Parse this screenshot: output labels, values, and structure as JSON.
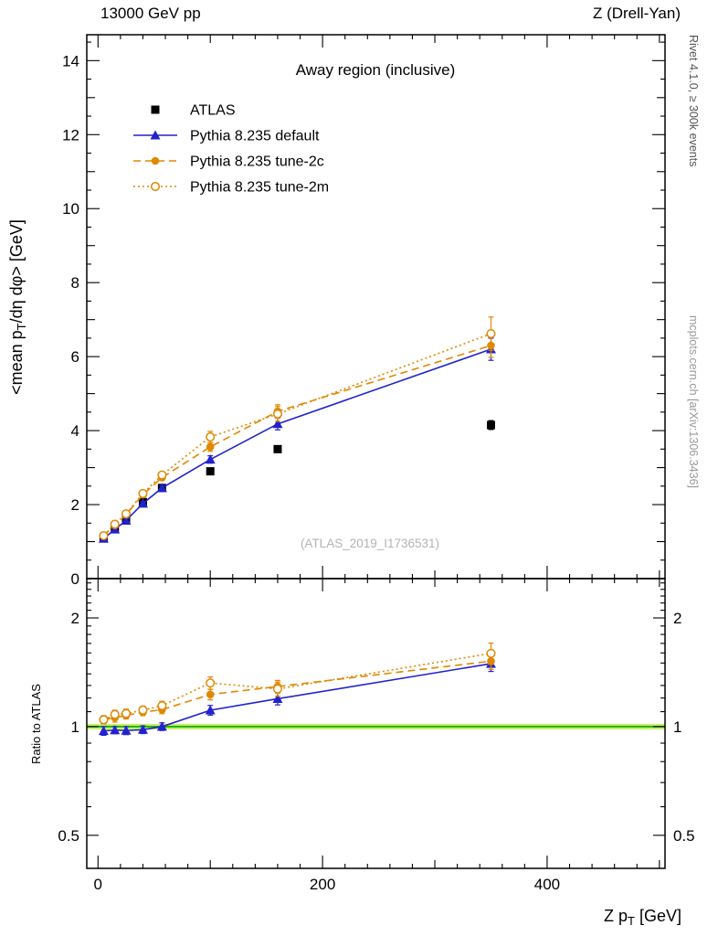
{
  "header": {
    "left_label": "13000 GeV pp",
    "right_label": "Z (Drell-Yan)"
  },
  "side_labels": {
    "top_right": "Rivet 4.1.0, ≥ 300k events",
    "bottom_right": "mcplots.cern.ch [arXiv:1306.3436]"
  },
  "chart_data": {
    "type": "line",
    "title": "Away region (inclusive)",
    "watermark": "(ATLAS_2019_I1736531)",
    "xlabel": "Z p_{T} [GeV]",
    "ylabel": "<mean p_{T}/dη dφ> [GeV]",
    "ratio_ylabel": "Ratio to ATLAS",
    "x": [
      5,
      15,
      25,
      40,
      57,
      100,
      160,
      350
    ],
    "xlim": [
      -10,
      505
    ],
    "ylim": [
      0,
      14.7
    ],
    "ratio_ylim": [
      0.405,
      2.57
    ],
    "ratio_scale": "log",
    "x_ticks_major": [
      0,
      200,
      400
    ],
    "y_ticks_major": [
      0,
      2,
      4,
      6,
      8,
      10,
      12,
      14
    ],
    "ratio_ticks_major": [
      0.5,
      1,
      2
    ],
    "legend_position": "top-left",
    "grid": false,
    "ref_band": {
      "center": 1.0,
      "half_width": 0.018,
      "band_color": "#c9ef6b",
      "line_color": "#00aa00"
    },
    "series": [
      {
        "name": "ATLAS",
        "color": "#000000",
        "marker": "square-filled",
        "line": "none",
        "is_reference": true,
        "values": [
          1.11,
          1.36,
          1.61,
          2.07,
          2.45,
          2.9,
          3.5,
          4.15
        ],
        "errors": [
          0.03,
          0.03,
          0.04,
          0.04,
          0.05,
          0.07,
          0.09,
          0.12
        ]
      },
      {
        "name": "Pythia 8.235 default",
        "color": "#2222cc",
        "marker": "triangle-filled",
        "line": "solid",
        "is_reference": false,
        "values": [
          1.08,
          1.33,
          1.57,
          2.03,
          2.45,
          3.22,
          4.18,
          6.2
        ],
        "errors": [
          0.03,
          0.03,
          0.04,
          0.05,
          0.06,
          0.1,
          0.16,
          0.3
        ]
      },
      {
        "name": "Pythia 8.235 tune-2c",
        "color": "#e08800",
        "marker": "circle-filled",
        "line": "dashed",
        "is_reference": false,
        "values": [
          1.16,
          1.44,
          1.73,
          2.27,
          2.73,
          3.56,
          4.52,
          6.3
        ],
        "errors": [
          0.03,
          0.04,
          0.04,
          0.05,
          0.07,
          0.12,
          0.18,
          0.32
        ]
      },
      {
        "name": "Pythia 8.235 tune-2m",
        "color": "#e08800",
        "marker": "circle-open",
        "line": "dotted",
        "is_reference": false,
        "values": [
          1.16,
          1.47,
          1.75,
          2.3,
          2.8,
          3.83,
          4.45,
          6.62
        ],
        "errors": [
          0.03,
          0.04,
          0.05,
          0.06,
          0.08,
          0.15,
          0.2,
          0.45
        ]
      }
    ]
  }
}
